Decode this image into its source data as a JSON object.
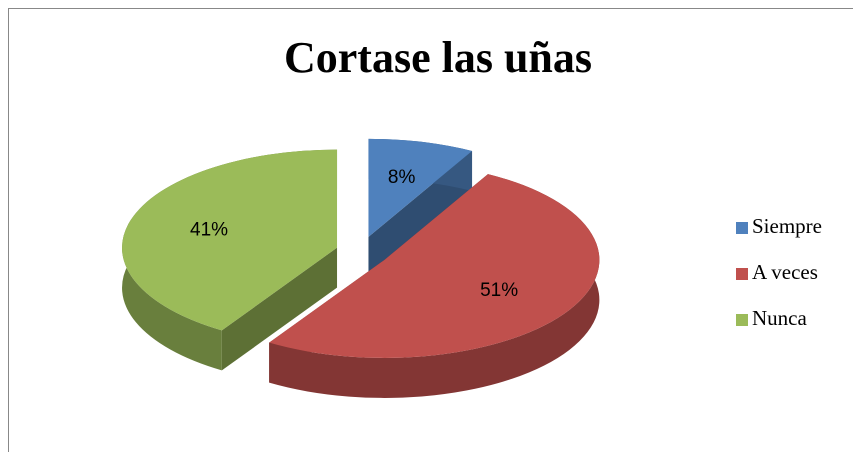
{
  "chart_data": {
    "type": "pie",
    "title": "Cortase las uñas",
    "categories": [
      "Siempre",
      "A veces",
      "Nunca"
    ],
    "values": [
      8,
      51,
      41
    ],
    "value_labels": [
      "8%",
      "51%",
      "41%"
    ],
    "colors": [
      "#4f81bd",
      "#c0504d",
      "#9bbb59"
    ],
    "legend": "right"
  }
}
